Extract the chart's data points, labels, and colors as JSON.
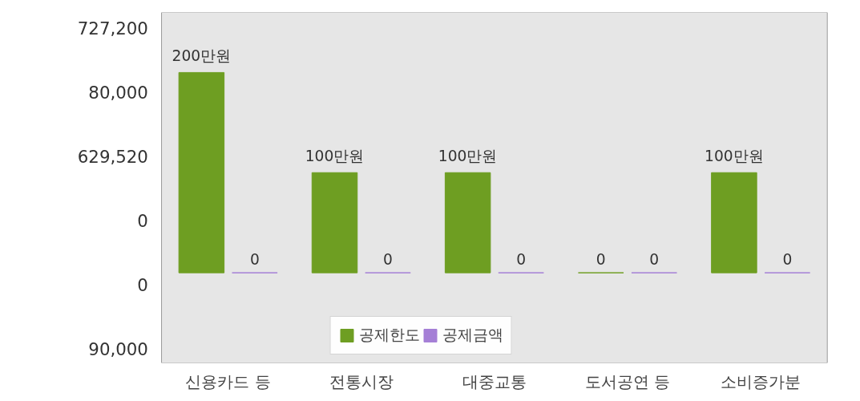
{
  "chart_data": {
    "type": "bar",
    "categories": [
      "신용카드 등",
      "전통시장",
      "대중교통",
      "도서공연 등",
      "소비증가분"
    ],
    "series": [
      {
        "name": "공제한도",
        "color": "#6e9e22",
        "values": [
          200,
          100,
          100,
          0,
          100
        ],
        "value_labels": [
          "200만원",
          "100만원",
          "100만원",
          "0",
          "100만원"
        ]
      },
      {
        "name": "공제금액",
        "color": "#a57fd6",
        "values": [
          0,
          0,
          0,
          0,
          0
        ],
        "value_labels": [
          "0",
          "0",
          "0",
          "0",
          "0"
        ]
      }
    ],
    "legend": "bottom",
    "annotations": [
      "727,200",
      "80,000",
      "629,520",
      "0",
      "0",
      "90,000"
    ]
  }
}
